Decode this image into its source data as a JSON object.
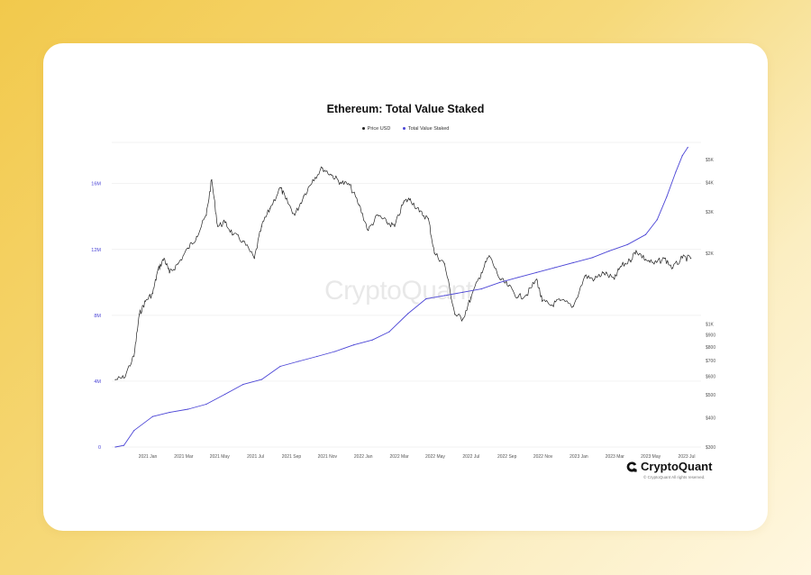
{
  "chart_data": {
    "type": "line",
    "title": "Ethereum: Total Value Staked",
    "legend": [
      "Price USD",
      "Total Value Staked"
    ],
    "legend_placement": "top-center",
    "grid": true,
    "x_labels": [
      "2021 Jan",
      "2021 Mar",
      "2021 May",
      "2021 Jul",
      "2021 Sep",
      "2021 Nov",
      "2022 Jan",
      "2022 Mar",
      "2022 May",
      "2022 Jul",
      "2022 Sep",
      "2022 Nov",
      "2023 Jan",
      "2023 Mar",
      "2023 May",
      "2023 Jul"
    ],
    "left_axis": {
      "ticks": [
        "0",
        "4M",
        "8M",
        "12M",
        "16M"
      ],
      "values": [
        0,
        4,
        8,
        12,
        16
      ],
      "ylim": [
        0,
        18.5
      ],
      "unit": "M",
      "color": "#4b45d6"
    },
    "right_axis": {
      "ticks": [
        "$300",
        "$400",
        "$500",
        "$600",
        "$700",
        "$800",
        "$900",
        "$1K",
        "$2K",
        "$3K",
        "$4K",
        "$5K"
      ],
      "values": [
        300,
        400,
        500,
        600,
        700,
        800,
        900,
        1000,
        2000,
        3000,
        4000,
        5000
      ],
      "scale": "log"
    },
    "series": [
      {
        "name": "Price USD",
        "axis": "right",
        "color": "#222222",
        "x": [
          "2020-12-01",
          "2020-12-15",
          "2021-01-01",
          "2021-01-10",
          "2021-01-20",
          "2021-02-01",
          "2021-02-10",
          "2021-02-20",
          "2021-03-01",
          "2021-03-15",
          "2021-04-01",
          "2021-04-15",
          "2021-05-01",
          "2021-05-10",
          "2021-05-20",
          "2021-06-01",
          "2021-06-15",
          "2021-07-01",
          "2021-07-20",
          "2021-08-01",
          "2021-08-15",
          "2021-09-01",
          "2021-09-10",
          "2021-09-25",
          "2021-10-10",
          "2021-10-25",
          "2021-11-10",
          "2021-11-25",
          "2021-12-10",
          "2021-12-25",
          "2022-01-10",
          "2022-01-25",
          "2022-02-10",
          "2022-02-25",
          "2022-03-10",
          "2022-03-25",
          "2022-04-05",
          "2022-04-20",
          "2022-05-05",
          "2022-05-15",
          "2022-06-01",
          "2022-06-18",
          "2022-07-01",
          "2022-07-15",
          "2022-08-01",
          "2022-08-14",
          "2022-09-01",
          "2022-09-15",
          "2022-10-01",
          "2022-10-15",
          "2022-11-01",
          "2022-11-10",
          "2022-11-25",
          "2022-12-10",
          "2023-01-01",
          "2023-01-20",
          "2023-02-05",
          "2023-02-20",
          "2023-03-10",
          "2023-03-20",
          "2023-04-05",
          "2023-04-15",
          "2023-05-01",
          "2023-05-15",
          "2023-06-01",
          "2023-06-15",
          "2023-07-01",
          "2023-07-15"
        ],
        "y": [
          580,
          590,
          730,
          1100,
          1250,
          1350,
          1700,
          1900,
          1650,
          1800,
          2100,
          2350,
          2900,
          4100,
          2600,
          2700,
          2400,
          2250,
          1900,
          2600,
          3100,
          3800,
          3400,
          2900,
          3500,
          4100,
          4600,
          4300,
          4000,
          3900,
          3200,
          2500,
          2900,
          2700,
          2600,
          3300,
          3400,
          3000,
          2800,
          2000,
          1800,
          1100,
          1050,
          1300,
          1650,
          1950,
          1550,
          1450,
          1300,
          1330,
          1550,
          1250,
          1200,
          1260,
          1190,
          1600,
          1550,
          1650,
          1550,
          1750,
          1860,
          2050,
          1880,
          1800,
          1900,
          1730,
          1910,
          1900
        ]
      },
      {
        "name": "Total Value Staked",
        "axis": "left",
        "color": "#4b45d6",
        "x": [
          "2020-12-01",
          "2020-12-15",
          "2021-01-01",
          "2021-02-01",
          "2021-03-01",
          "2021-04-01",
          "2021-05-01",
          "2021-06-01",
          "2021-07-01",
          "2021-08-01",
          "2021-09-01",
          "2021-10-01",
          "2021-11-01",
          "2021-12-01",
          "2022-01-01",
          "2022-02-01",
          "2022-03-01",
          "2022-04-01",
          "2022-05-01",
          "2022-06-01",
          "2022-07-01",
          "2022-08-01",
          "2022-09-01",
          "2022-10-01",
          "2022-11-01",
          "2022-12-01",
          "2023-01-01",
          "2023-02-01",
          "2023-03-01",
          "2023-04-01",
          "2023-05-01",
          "2023-05-20",
          "2023-06-05",
          "2023-06-20",
          "2023-07-01",
          "2023-07-10"
        ],
        "y": [
          0.0,
          0.1,
          1.0,
          1.85,
          2.1,
          2.3,
          2.6,
          3.2,
          3.8,
          4.1,
          4.9,
          5.2,
          5.5,
          5.8,
          6.2,
          6.5,
          7.0,
          8.1,
          9.0,
          9.2,
          9.4,
          9.6,
          10.0,
          10.3,
          10.6,
          10.9,
          11.2,
          11.5,
          11.9,
          12.3,
          12.9,
          13.8,
          15.2,
          16.7,
          17.7,
          18.2
        ]
      }
    ]
  },
  "watermark": "CryptoQuant",
  "brand": {
    "name": "CryptoQuant",
    "copyright": "© CryptoQuant All rights reserved."
  }
}
